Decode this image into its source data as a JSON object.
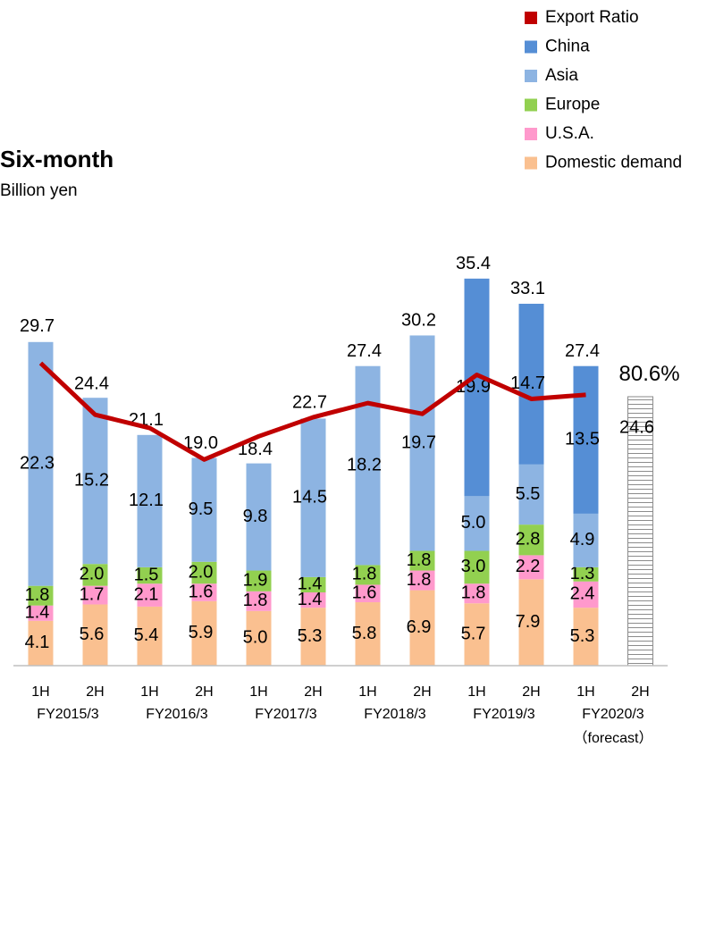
{
  "chart_data": {
    "type": "bar",
    "title": "Six-month",
    "subtitle": "Billion yen",
    "categories": [
      "1H",
      "2H",
      "1H",
      "2H",
      "1H",
      "2H",
      "1H",
      "2H",
      "1H",
      "2H",
      "1H",
      "2H"
    ],
    "groups": [
      "FY2015/3",
      "FY2016/3",
      "FY2017/3",
      "FY2018/3",
      "FY2019/3",
      "FY2020/3"
    ],
    "note": "（forecast）",
    "ylim": [
      0,
      38
    ],
    "y2lim": [
      48,
      98
    ],
    "series": [
      {
        "name": "Domestic demand",
        "color": "#fac090",
        "values": [
          4.1,
          5.6,
          5.4,
          5.9,
          5.0,
          5.3,
          5.8,
          6.9,
          5.7,
          7.9,
          5.3,
          null
        ],
        "value_labels": [
          "4.1",
          "5.6",
          "5.4",
          "5.9",
          "5.0",
          "5.3",
          "5.8",
          "6.9",
          "5.7",
          "7.9",
          "5.3",
          null
        ]
      },
      {
        "name": "U.S.A.",
        "color": "#ff99cc",
        "values": [
          1.4,
          1.7,
          2.1,
          1.6,
          1.8,
          1.4,
          1.6,
          1.8,
          1.8,
          2.2,
          2.4,
          null
        ],
        "value_labels": [
          "1.4",
          "1.7",
          "2.1",
          "1.6",
          "1.8",
          "1.4",
          "1.6",
          "1.8",
          "1.8",
          "2.2",
          "2.4",
          null
        ]
      },
      {
        "name": "Europe",
        "color": "#92d050",
        "values": [
          1.8,
          2.0,
          1.5,
          2.0,
          1.9,
          1.4,
          1.8,
          1.8,
          3.0,
          2.8,
          1.3,
          null
        ],
        "value_labels": [
          "1.8",
          "2.0",
          "1.5",
          "2.0",
          "1.9",
          "1.4",
          "1.8",
          "1.8",
          "3.0",
          "2.8",
          "1.3",
          null
        ]
      },
      {
        "name": "Asia",
        "color": "#8db4e2",
        "values": [
          22.3,
          15.2,
          12.1,
          9.5,
          9.8,
          14.5,
          18.2,
          19.7,
          5.0,
          5.5,
          4.9,
          null
        ],
        "value_labels": [
          "22.3",
          "15.2",
          "12.1",
          "9.5",
          "9.8",
          "14.5",
          "18.2",
          "19.7",
          "5.0",
          "5.5",
          "4.9",
          null
        ]
      },
      {
        "name": "China",
        "color": "#558ed5",
        "label_color": "#595959",
        "values": [
          null,
          null,
          null,
          null,
          null,
          null,
          null,
          null,
          19.9,
          14.7,
          13.5,
          null
        ],
        "value_labels": [
          null,
          null,
          null,
          null,
          null,
          null,
          null,
          null,
          "19.9",
          "14.7",
          "13.5",
          null
        ]
      },
      {
        "name": "Export Ratio",
        "type": "line",
        "axis": "y2",
        "color": "#c00000",
        "values": [
          84.4,
          78.2,
          76.6,
          72.8,
          75.6,
          77.9,
          79.6,
          78.3,
          83.0,
          80.1,
          80.6,
          null
        ],
        "value_labels": [
          null,
          null,
          null,
          null,
          null,
          null,
          null,
          null,
          null,
          null,
          "80.6%",
          null
        ]
      }
    ],
    "totals": [
      29.7,
      24.4,
      21.1,
      19.0,
      18.4,
      22.7,
      27.4,
      30.2,
      35.4,
      33.1,
      27.4,
      24.6
    ],
    "total_labels": [
      "29.7",
      "24.4",
      "21.1",
      "19.0",
      "18.4",
      "22.7",
      "27.4",
      "30.2",
      "35.4",
      "33.1",
      "27.4",
      "24.6"
    ]
  }
}
